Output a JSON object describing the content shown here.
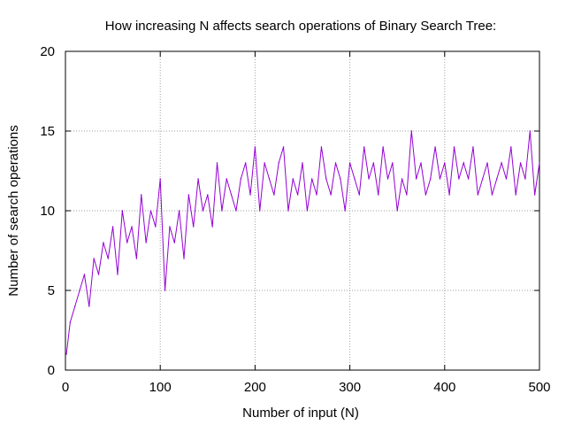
{
  "chart_data": {
    "type": "line",
    "title": "How increasing N affects search operations of Binary Search Tree:",
    "xlabel": "Number of input (N)",
    "ylabel": "Number of search operations",
    "xlim": [
      0,
      500
    ],
    "ylim": [
      0,
      20
    ],
    "x_ticks": [
      "0",
      "100",
      "200",
      "300",
      "400",
      "500"
    ],
    "y_ticks": [
      "0",
      "5",
      "10",
      "15",
      "20"
    ],
    "grid": true,
    "legend": "none",
    "line_color": "#9400d3",
    "x": [
      1,
      5,
      10,
      15,
      20,
      25,
      30,
      35,
      40,
      45,
      50,
      55,
      60,
      65,
      70,
      75,
      80,
      85,
      90,
      95,
      100,
      105,
      110,
      115,
      120,
      125,
      130,
      135,
      140,
      145,
      150,
      155,
      160,
      165,
      170,
      175,
      180,
      185,
      190,
      195,
      200,
      205,
      210,
      215,
      220,
      225,
      230,
      235,
      240,
      245,
      250,
      255,
      260,
      265,
      270,
      275,
      280,
      285,
      290,
      295,
      300,
      305,
      310,
      315,
      320,
      325,
      330,
      335,
      340,
      345,
      350,
      355,
      360,
      365,
      370,
      375,
      380,
      385,
      390,
      395,
      400,
      405,
      410,
      415,
      420,
      425,
      430,
      435,
      440,
      445,
      450,
      455,
      460,
      465,
      470,
      475,
      480,
      485,
      490,
      495,
      500
    ],
    "series": [
      {
        "values": [
          1,
          3,
          4,
          5,
          6,
          4,
          7,
          6,
          8,
          7,
          9,
          6,
          10,
          8,
          9,
          7,
          11,
          8,
          10,
          9,
          12,
          5,
          9,
          8,
          10,
          7,
          11,
          9,
          12,
          10,
          11,
          9,
          13,
          10,
          12,
          11,
          10,
          12,
          13,
          11,
          14,
          10,
          13,
          12,
          11,
          13,
          14,
          10,
          12,
          11,
          13,
          10,
          12,
          11,
          14,
          12,
          11,
          13,
          12,
          10,
          13,
          12,
          11,
          14,
          12,
          13,
          11,
          14,
          12,
          13,
          10,
          12,
          11,
          15,
          12,
          13,
          11,
          12,
          14,
          12,
          13,
          11,
          14,
          12,
          13,
          12,
          14,
          11,
          12,
          13,
          11,
          12,
          13,
          12,
          14,
          11,
          13,
          12,
          15,
          11,
          13
        ]
      }
    ]
  }
}
